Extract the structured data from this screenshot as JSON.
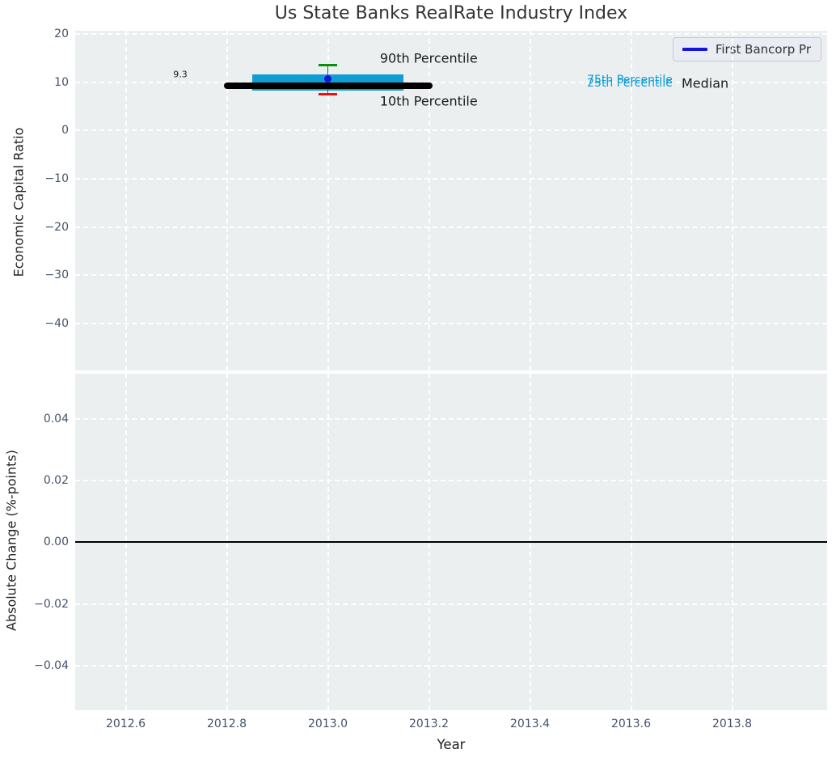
{
  "colors": {
    "figure_bg": "#ffffff",
    "axes_bg": "#ebeff0",
    "grid": "#ffffff",
    "tick_label": "#46536b",
    "title": "#333333",
    "axis_label": "#1f1f1f",
    "iqr_box": "#0f9dd3",
    "median_bar": "#000000",
    "p90_cap": "#0a8f0a",
    "p10_cap": "#ea1010",
    "whisker_line": "#4a4a4a",
    "series_blue": "#1414dd"
  },
  "chart_data": [
    {
      "type": "line",
      "title": "Us State Banks RealRate Industry Index",
      "xlabel": "",
      "ylabel": "Economic Capital Ratio",
      "xlim": [
        2012.5,
        2013.988
      ],
      "ylim": [
        -49.7,
        20.7
      ],
      "grid": true,
      "x_ticks": [
        2012.6,
        2012.8,
        2013.0,
        2013.2,
        2013.4,
        2013.6,
        2013.8
      ],
      "x_tick_labels": [],
      "y_ticks": [
        20,
        10,
        0,
        -10,
        -20,
        -30,
        -40
      ],
      "y_tick_labels": [
        "20",
        "10",
        "0",
        "−10",
        "−20",
        "−30",
        "−40"
      ],
      "legend": {
        "location": "upper right",
        "entries": [
          {
            "label": "First Bancorp Pr",
            "color": "#1414dd",
            "marker": "line"
          }
        ]
      },
      "series": [
        {
          "name": "First Bancorp Pr",
          "marker": "circle",
          "color": "#1414dd",
          "points": [
            {
              "x": 2013.0,
              "y": 10.7
            }
          ]
        }
      ],
      "box_stats": {
        "x": 2013.0,
        "median": 9.3,
        "median_label": "9.3",
        "p75": 11.7,
        "p25": 8.3,
        "p90": 13.5,
        "p10": 7.6,
        "median_bar_span": [
          2012.8,
          2013.2
        ],
        "iqr_box_span": [
          2012.85,
          2013.15
        ],
        "cap_half_width": 0.018,
        "colors": {
          "median_bar": "#000000",
          "iqr_box": "#0f9dd3",
          "p90_cap": "#0a8f0a",
          "p10_cap": "#ea1010",
          "whisker_line": "#4a4a4a"
        }
      },
      "annotations": [
        {
          "text": "9.3",
          "x": 2012.694,
          "y": 11.66,
          "color": "#1a1a1a",
          "size": 11
        },
        {
          "text": "90th Percentile",
          "x": 2013.103,
          "y": 15.0,
          "color": "#1a1a1a",
          "size": 16
        },
        {
          "text": "10th Percentile",
          "x": 2013.103,
          "y": 6.1,
          "color": "#1a1a1a",
          "size": 16
        },
        {
          "text": "75th Percentile",
          "x": 2013.513,
          "y": 10.43,
          "color": "#0f9dd3",
          "size": 14
        },
        {
          "text": "25th Percentile",
          "x": 2013.513,
          "y": 9.85,
          "color": "#0f9dd3",
          "size": 14
        },
        {
          "text": "Median",
          "x": 2013.7,
          "y": 9.77,
          "color": "#1a1a1a",
          "size": 16
        }
      ]
    },
    {
      "type": "line",
      "title": "",
      "xlabel": "Year",
      "ylabel": "Absolute Change (%-points)",
      "xlim": [
        2012.5,
        2013.988
      ],
      "ylim": [
        -0.0545,
        0.0547
      ],
      "grid": true,
      "x_ticks": [
        2012.6,
        2012.8,
        2013.0,
        2013.2,
        2013.4,
        2013.6,
        2013.8
      ],
      "x_tick_labels": [
        "2012.6",
        "2012.8",
        "2013.0",
        "2013.2",
        "2013.4",
        "2013.6",
        "2013.8"
      ],
      "y_ticks": [
        0.04,
        0.02,
        0.0,
        -0.02,
        -0.04
      ],
      "y_tick_labels": [
        "0.04",
        "0.02",
        "0.00",
        "−0.02",
        "−0.04"
      ],
      "zero_line": {
        "y": 0.0,
        "color": "#000000"
      },
      "series": []
    }
  ]
}
